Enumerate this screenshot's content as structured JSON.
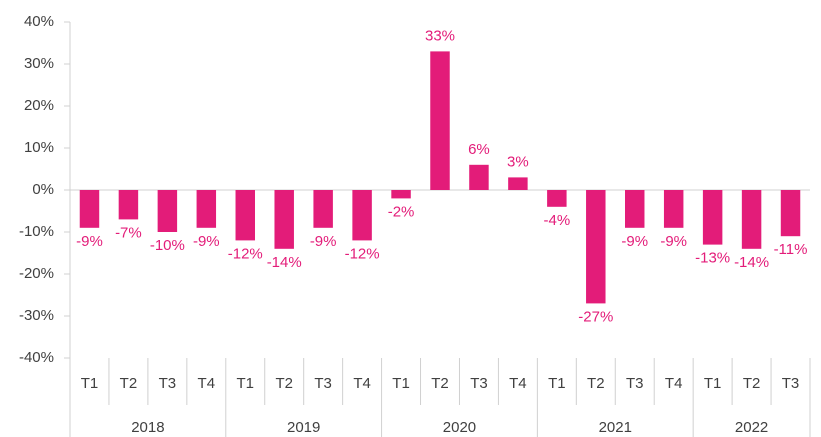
{
  "chart_data": {
    "type": "bar",
    "categories": [
      "T1",
      "T2",
      "T3",
      "T4",
      "T1",
      "T2",
      "T3",
      "T4",
      "T1",
      "T2",
      "T3",
      "T4",
      "T1",
      "T2",
      "T3",
      "T4",
      "T1",
      "T2",
      "T3"
    ],
    "groups": [
      {
        "label": "2018",
        "size": 4
      },
      {
        "label": "2019",
        "size": 4
      },
      {
        "label": "2020",
        "size": 4
      },
      {
        "label": "2021",
        "size": 4
      },
      {
        "label": "2022",
        "size": 3
      }
    ],
    "values": [
      -9,
      -7,
      -10,
      -9,
      -12,
      -14,
      -9,
      -12,
      -2,
      33,
      6,
      3,
      -4,
      -27,
      -9,
      -9,
      -13,
      -14,
      -11
    ],
    "value_labels": [
      "-9%",
      "-7%",
      "-10%",
      "-9%",
      "-12%",
      "-14%",
      "-9%",
      "-12%",
      "-2%",
      "33%",
      "6%",
      "3%",
      "-4%",
      "-27%",
      "-9%",
      "-9%",
      "-13%",
      "-14%",
      "-11%"
    ],
    "color": "#e31c79",
    "ylim": [
      -40,
      40
    ],
    "yticks": [
      {
        "value": -40,
        "label": "-40%"
      },
      {
        "value": -30,
        "label": "-30%"
      },
      {
        "value": -20,
        "label": "-20%"
      },
      {
        "value": -10,
        "label": "-10%"
      },
      {
        "value": 0,
        "label": "0%"
      },
      {
        "value": 10,
        "label": "10%"
      },
      {
        "value": 20,
        "label": "20%"
      },
      {
        "value": 30,
        "label": "30%"
      },
      {
        "value": 40,
        "label": "40%"
      }
    ],
    "grid": false
  }
}
